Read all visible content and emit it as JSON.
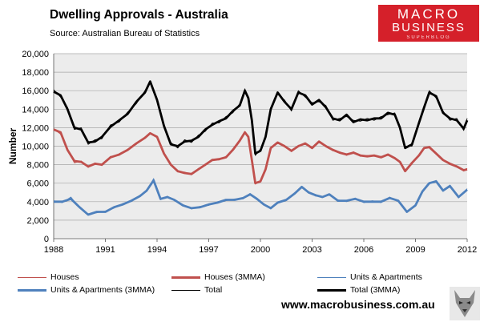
{
  "header": {
    "title": "Dwelling Approvals - Australia",
    "source": "Source:  Australian Bureau of Statistics"
  },
  "logo": {
    "line1": "MACRO",
    "line2": "BUSINESS",
    "line3": "SUPERBLOG"
  },
  "footer": {
    "website": "www.macrobusiness.com.au"
  },
  "colors": {
    "houses": "#c0504d",
    "units": "#4f81bd",
    "total": "#000000",
    "plot_bg": "#ececec",
    "brand_red": "#d5202a"
  },
  "chart_data": {
    "type": "line",
    "ylabel": "Number",
    "xlabel": "",
    "x_range": [
      1988,
      2012
    ],
    "ylim": [
      0,
      20000
    ],
    "y_ticks": [
      "0",
      "2,000",
      "4,000",
      "6,000",
      "8,000",
      "10,000",
      "12,000",
      "14,000",
      "16,000",
      "18,000",
      "20,000"
    ],
    "x_ticks": [
      "1988",
      "1991",
      "1994",
      "1997",
      "2000",
      "2003",
      "2006",
      "2009",
      "2012"
    ],
    "grid": true,
    "legend_position": "bottom",
    "legend": [
      "Houses",
      "Houses (3MMA)",
      "Units & Apartments",
      "Units & Apartments (3MMA)",
      "Total",
      "Total (3MMA)"
    ],
    "series": [
      {
        "name": "Houses (3MMA)",
        "x": [
          1988,
          1988.4,
          1988.8,
          1989.2,
          1989.6,
          1990,
          1990.4,
          1990.8,
          1991.3,
          1991.8,
          1992.3,
          1992.8,
          1993.3,
          1993.6,
          1994,
          1994.4,
          1994.8,
          1995.2,
          1995.6,
          1996,
          1996.4,
          1996.8,
          1997.2,
          1997.6,
          1998,
          1998.4,
          1998.8,
          1999.1,
          1999.3,
          1999.5,
          1999.7,
          2000,
          2000.3,
          2000.6,
          2001,
          2001.4,
          2001.8,
          2002.2,
          2002.6,
          2003,
          2003.4,
          2003.8,
          2004.2,
          2004.6,
          2005,
          2005.4,
          2005.8,
          2006.2,
          2006.6,
          2007,
          2007.4,
          2007.8,
          2008.1,
          2008.4,
          2008.8,
          2009.2,
          2009.5,
          2009.8,
          2010.2,
          2010.6,
          2011,
          2011.4,
          2011.8,
          2012
        ],
        "y": [
          11800,
          11500,
          9600,
          8400,
          8300,
          7800,
          8100,
          8000,
          8800,
          9100,
          9600,
          10300,
          10900,
          11400,
          11000,
          9200,
          8000,
          7300,
          7100,
          7000,
          7500,
          8000,
          8500,
          8600,
          8800,
          9600,
          10600,
          11500,
          11000,
          8500,
          6000,
          6200,
          7500,
          9800,
          10400,
          10000,
          9500,
          10000,
          10300,
          9800,
          10500,
          10000,
          9600,
          9300,
          9100,
          9300,
          9000,
          8900,
          9000,
          8800,
          9100,
          8700,
          8300,
          7300,
          8200,
          9000,
          9800,
          9900,
          9200,
          8500,
          8100,
          7800,
          7400,
          7500
        ]
      },
      {
        "name": "Units & Apartments (3MMA)",
        "x": [
          1988,
          1988.5,
          1989,
          1989.5,
          1990,
          1990.5,
          1991,
          1991.5,
          1992,
          1992.5,
          1993,
          1993.4,
          1993.8,
          1994.2,
          1994.6,
          1995,
          1995.5,
          1996,
          1996.5,
          1997,
          1997.5,
          1998,
          1998.5,
          1999,
          1999.4,
          1999.8,
          2000.2,
          2000.6,
          2001,
          2001.5,
          2002,
          2002.4,
          2002.8,
          2003.2,
          2003.6,
          2004,
          2004.5,
          2005,
          2005.5,
          2006,
          2006.5,
          2007,
          2007.5,
          2008,
          2008.5,
          2009,
          2009.4,
          2009.8,
          2010.2,
          2010.6,
          2011,
          2011.5,
          2012
        ],
        "y": [
          4000,
          4000,
          4300,
          3400,
          2600,
          2900,
          2900,
          3400,
          3700,
          4100,
          4600,
          5200,
          6300,
          4300,
          4500,
          4200,
          3600,
          3300,
          3400,
          3700,
          3900,
          4200,
          4200,
          4400,
          4800,
          4300,
          3700,
          3300,
          3900,
          4200,
          4900,
          5600,
          5000,
          4700,
          4500,
          4800,
          4100,
          4100,
          4300,
          4000,
          4000,
          4000,
          4400,
          4100,
          2900,
          3600,
          5100,
          6000,
          6200,
          5200,
          5700,
          4500,
          5300
        ]
      },
      {
        "name": "Total (3MMA)",
        "x": [
          1988,
          1988.4,
          1988.8,
          1989.2,
          1989.6,
          1990,
          1990.4,
          1990.8,
          1991.3,
          1991.8,
          1992.3,
          1992.8,
          1993.3,
          1993.6,
          1994,
          1994.4,
          1994.8,
          1995.2,
          1995.6,
          1996,
          1996.4,
          1996.8,
          1997.2,
          1997.6,
          1998,
          1998.4,
          1998.8,
          1999.1,
          1999.3,
          1999.5,
          1999.7,
          2000,
          2000.3,
          2000.6,
          2001,
          2001.4,
          2001.8,
          2002.2,
          2002.6,
          2003,
          2003.4,
          2003.8,
          2004.2,
          2004.6,
          2005,
          2005.4,
          2005.8,
          2006.2,
          2006.6,
          2007,
          2007.4,
          2007.8,
          2008.1,
          2008.4,
          2008.8,
          2009.2,
          2009.5,
          2009.8,
          2010.2,
          2010.6,
          2011,
          2011.4,
          2011.8,
          2012
        ],
        "y": [
          15900,
          15500,
          14000,
          12000,
          11800,
          10400,
          10500,
          11000,
          12100,
          12800,
          13500,
          14800,
          15800,
          17000,
          15000,
          12200,
          10200,
          10000,
          10500,
          10600,
          11000,
          11800,
          12300,
          12700,
          13000,
          13800,
          14400,
          16000,
          15200,
          12800,
          9200,
          9500,
          11000,
          14000,
          15800,
          14800,
          14000,
          15800,
          15500,
          14500,
          15000,
          14200,
          13000,
          12800,
          13400,
          12600,
          12900,
          12800,
          13000,
          13000,
          13600,
          13400,
          12000,
          9800,
          10200,
          12500,
          14200,
          15800,
          15400,
          13600,
          13000,
          12800,
          11900,
          12800
        ]
      },
      {
        "name": "Houses",
        "x": [
          1988,
          1988.4,
          1988.8,
          1989.2,
          1989.6,
          1990,
          1990.4,
          1990.8,
          1991.3,
          1991.8,
          1992.3,
          1992.8,
          1993.3,
          1993.6,
          1994,
          1994.4,
          1994.8,
          1995.2,
          1995.6,
          1996,
          1996.4,
          1996.8,
          1997.2,
          1997.6,
          1998,
          1998.4,
          1998.8,
          1999.1,
          1999.3,
          1999.5,
          1999.7,
          2000,
          2000.3,
          2000.6,
          2001,
          2001.4,
          2001.8,
          2002.2,
          2002.6,
          2003,
          2003.4,
          2003.8,
          2004.2,
          2004.6,
          2005,
          2005.4,
          2005.8,
          2006.2,
          2006.6,
          2007,
          2007.4,
          2007.8,
          2008.1,
          2008.4,
          2008.8,
          2009.2,
          2009.5,
          2009.8,
          2010.2,
          2010.6,
          2011,
          2011.4,
          2011.8,
          2012
        ],
        "y": [
          11900,
          11300,
          9700,
          8200,
          8400,
          7700,
          8200,
          7900,
          8900,
          9000,
          9700,
          10200,
          11000,
          11300,
          11100,
          9100,
          8100,
          7200,
          7200,
          6900,
          7600,
          7900,
          8600,
          8500,
          8900,
          9500,
          10700,
          11600,
          10900,
          8400,
          5900,
          6300,
          7400,
          9900,
          10300,
          10100,
          9400,
          10100,
          10200,
          9900,
          10400,
          10100,
          9500,
          9400,
          9000,
          9400,
          8900,
          9000,
          8900,
          8900,
          9000,
          8800,
          8200,
          7400,
          8100,
          9100,
          9700,
          10000,
          9100,
          8600,
          8000,
          7900,
          7300,
          7600
        ]
      },
      {
        "name": "Units & Apartments",
        "x": [
          1988,
          1988.5,
          1989,
          1989.5,
          1990,
          1990.5,
          1991,
          1991.5,
          1992,
          1992.5,
          1993,
          1993.4,
          1993.8,
          1994.2,
          1994.6,
          1995,
          1995.5,
          1996,
          1996.5,
          1997,
          1997.5,
          1998,
          1998.5,
          1999,
          1999.4,
          1999.8,
          2000.2,
          2000.6,
          2001,
          2001.5,
          2002,
          2002.4,
          2002.8,
          2003.2,
          2003.6,
          2004,
          2004.5,
          2005,
          2005.5,
          2006,
          2006.5,
          2007,
          2007.5,
          2008,
          2008.5,
          2009,
          2009.4,
          2009.8,
          2010.2,
          2010.6,
          2011,
          2011.5,
          2012
        ],
        "y": [
          4100,
          3900,
          4500,
          3300,
          2700,
          2800,
          3000,
          3300,
          3800,
          4000,
          4700,
          5100,
          6500,
          4200,
          4600,
          4100,
          3700,
          3200,
          3500,
          3600,
          4000,
          4100,
          4300,
          4300,
          4900,
          4200,
          3800,
          3200,
          4000,
          4100,
          5000,
          5500,
          5100,
          4600,
          4600,
          4700,
          4200,
          4000,
          4400,
          3900,
          4100,
          3900,
          4500,
          4000,
          3000,
          3500,
          5200,
          5900,
          6300,
          5100,
          5800,
          4400,
          5400
        ]
      },
      {
        "name": "Total",
        "x": [
          1988,
          1988.4,
          1988.8,
          1989.2,
          1989.6,
          1990,
          1990.4,
          1990.8,
          1991.3,
          1991.8,
          1992.3,
          1992.8,
          1993.3,
          1993.6,
          1994,
          1994.4,
          1994.8,
          1995.2,
          1995.6,
          1996,
          1996.4,
          1996.8,
          1997.2,
          1997.6,
          1998,
          1998.4,
          1998.8,
          1999.1,
          1999.3,
          1999.5,
          1999.7,
          2000,
          2000.3,
          2000.6,
          2001,
          2001.4,
          2001.8,
          2002.2,
          2002.6,
          2003,
          2003.4,
          2003.8,
          2004.2,
          2004.6,
          2005,
          2005.4,
          2005.8,
          2006.2,
          2006.6,
          2007,
          2007.4,
          2007.8,
          2008.1,
          2008.4,
          2008.8,
          2009.2,
          2009.5,
          2009.8,
          2010.2,
          2010.6,
          2011,
          2011.4,
          2011.8,
          2012
        ],
        "y": [
          16100,
          15300,
          14200,
          11800,
          12000,
          10200,
          10700,
          10800,
          12300,
          12600,
          13700,
          14600,
          16000,
          16800,
          15200,
          12000,
          10400,
          9800,
          10700,
          10400,
          11200,
          11600,
          12500,
          12500,
          13200,
          13600,
          14600,
          16200,
          15000,
          12600,
          9000,
          9700,
          10800,
          14200,
          15600,
          15000,
          13800,
          16000,
          15300,
          14700,
          14800,
          14400,
          12800,
          13000,
          13200,
          12800,
          12700,
          13000,
          12800,
          13200,
          13400,
          13600,
          11800,
          10000,
          10000,
          12700,
          14000,
          16000,
          15200,
          13800,
          12800,
          13000,
          11700,
          13000
        ]
      }
    ]
  }
}
